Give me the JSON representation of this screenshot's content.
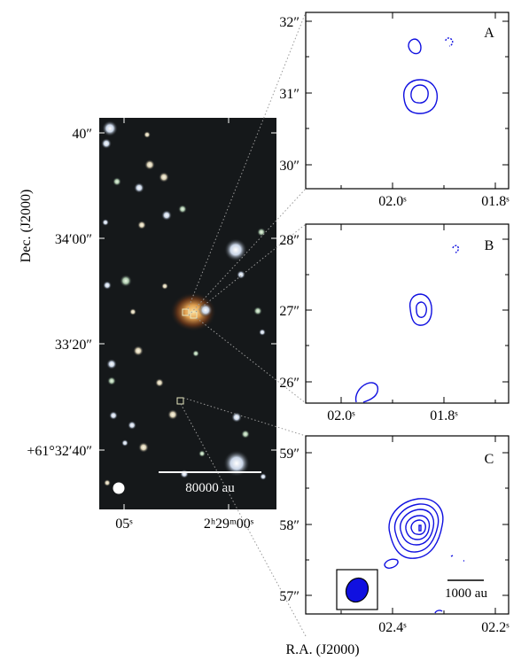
{
  "figure": {
    "x_axis_label": "R.A. (J2000)",
    "y_axis_label": "Dec. (J2000)",
    "contour_color": "#1010e0",
    "main_image": {
      "dec_ticks": [
        "40″",
        "34′00″",
        "33′20″",
        "+61°32′40″"
      ],
      "ra_ticks": [
        "05ˢ",
        "2ʰ29ᵐ00ˢ"
      ],
      "scale_bar_label": "80000 au"
    },
    "panels": [
      {
        "letter": "A",
        "dec_ticks": [
          "32″",
          "31″",
          "30″"
        ],
        "ra_ticks": [
          "02.0ˢ",
          "01.8ˢ"
        ]
      },
      {
        "letter": "B",
        "dec_ticks": [
          "28″",
          "27″",
          "26″"
        ],
        "ra_ticks": [
          "02.0ˢ",
          "01.8ˢ"
        ]
      },
      {
        "letter": "C",
        "dec_ticks": [
          "59″",
          "58″",
          "57″"
        ],
        "ra_ticks": [
          "02.4ˢ",
          "02.2ˢ"
        ],
        "scale_bar_label": "1000 au"
      }
    ]
  }
}
